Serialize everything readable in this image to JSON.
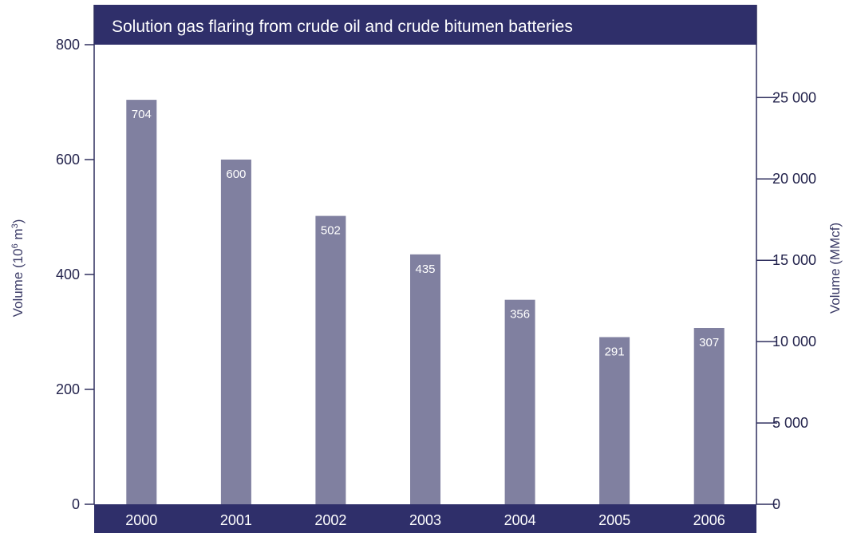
{
  "chart_data": {
    "type": "bar",
    "title": "Solution gas flaring from crude oil and crude bitumen batteries",
    "categories": [
      "2000",
      "2001",
      "2002",
      "2003",
      "2004",
      "2005",
      "2006"
    ],
    "values": [
      704,
      600,
      502,
      435,
      356,
      291,
      307
    ],
    "data_labels": [
      "704",
      "600",
      "502",
      "435",
      "356",
      "291",
      "307"
    ],
    "ylabel_prefix": "Volume (10",
    "ylabel_sup1": "6",
    "ylabel_mid": " m",
    "ylabel_sup2": "3",
    "ylabel_suffix": ")",
    "ylim": [
      0,
      800
    ],
    "yticks": [
      0,
      200,
      400,
      600,
      800
    ],
    "ytick_labels": [
      "0",
      "200",
      "400",
      "600",
      "800"
    ],
    "y2label": "Volume (MMcf)",
    "y2lim": [
      0,
      28251
    ],
    "y2ticks": [
      0,
      5000,
      10000,
      15000,
      20000,
      25000
    ],
    "y2tick_labels": [
      "0",
      "5 000",
      "10 000",
      "15 000",
      "20 000",
      "25 000"
    ],
    "grid": false,
    "legend": "none",
    "colors": {
      "bar": "#8080a0",
      "frame": "#2f2f6a",
      "axis": "#2f2f5e"
    }
  }
}
